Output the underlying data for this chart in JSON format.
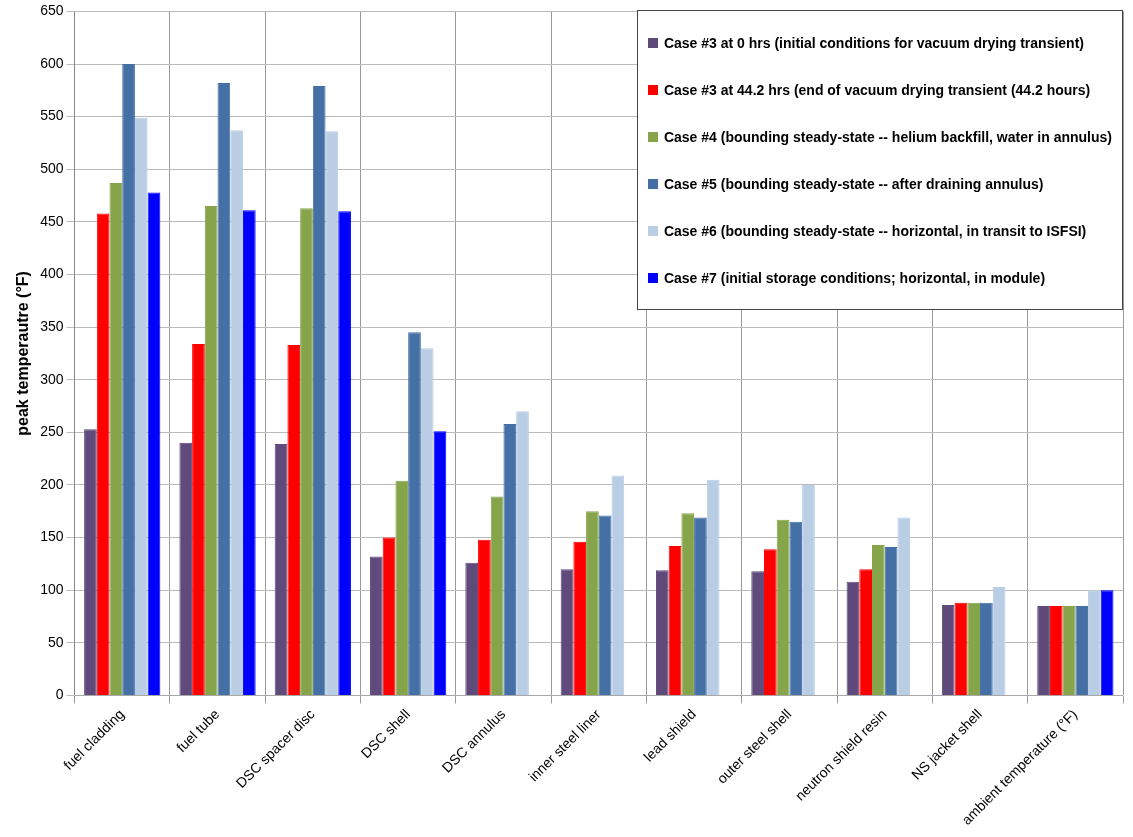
{
  "chart_data": {
    "type": "bar",
    "ylabel": "peak temperautre (°F)",
    "categories": [
      "fuel cladding",
      "fuel tube",
      "DSC spacer disc",
      "DSC shell",
      "DSC annulus",
      "inner steel liner",
      "lead shield",
      "outer steel shell",
      "neutron shield resin",
      "NS jacket shell",
      "ambient temperature (°F)"
    ],
    "series": [
      {
        "name": "Case #3 at 0 hrs (initial conditions for vacuum drying transient)",
        "color": "#604a7b",
        "values": [
          253,
          240,
          239,
          132,
          126,
          120,
          119,
          118,
          108,
          86,
          85
        ]
      },
      {
        "name": "Case #3 at 44.2 hrs (end of vacuum drying transient (44.2 hours)",
        "color": "#ff0000",
        "values": [
          458,
          334,
          333,
          150,
          148,
          146,
          142,
          139,
          120,
          88,
          85
        ]
      },
      {
        "name": "Case #4 (bounding steady-state -- helium backfill, water in annulus)",
        "color": "#86a44a",
        "values": [
          487,
          465,
          463,
          204,
          189,
          175,
          173,
          167,
          143,
          88,
          85
        ]
      },
      {
        "name": "Case #5 (bounding steady-state -- after draining annulus)",
        "color": "#4470a6",
        "values": [
          600,
          582,
          579,
          345,
          258,
          171,
          169,
          165,
          141,
          88,
          85
        ]
      },
      {
        "name": "Case #6 (bounding steady-state -- horizontal, in transit to ISFSI)",
        "color": "#b9cde5",
        "values": [
          549,
          537,
          536,
          330,
          270,
          209,
          205,
          200,
          169,
          103,
          100
        ]
      },
      {
        "name": "Case #7 (initial storage conditions; horizontal, in module)",
        "color": "#0000ff",
        "values": [
          478,
          461,
          460,
          251,
          null,
          null,
          null,
          null,
          null,
          null,
          100
        ]
      }
    ],
    "ylim": [
      0,
      650
    ],
    "yticks": [
      0,
      50,
      100,
      150,
      200,
      250,
      300,
      350,
      400,
      450,
      500,
      550,
      600,
      650
    ],
    "grid": true,
    "legend": "top right"
  }
}
